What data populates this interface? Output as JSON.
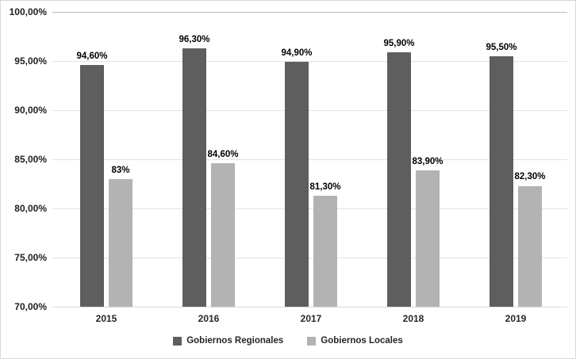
{
  "chart_data": {
    "type": "bar",
    "categories": [
      "2015",
      "2016",
      "2017",
      "2018",
      "2019"
    ],
    "series": [
      {
        "name": "Gobiernos Regionales",
        "color": "#5e5e5e",
        "values": [
          94.6,
          96.3,
          94.9,
          95.9,
          95.5
        ],
        "labels": [
          "94,60%",
          "96,30%",
          "94,90%",
          "95,90%",
          "95,50%"
        ]
      },
      {
        "name": "Gobiernos Locales",
        "color": "#b3b3b3",
        "values": [
          83.0,
          84.6,
          81.3,
          83.9,
          82.3
        ],
        "labels": [
          "83%",
          "84,60%",
          "81,30%",
          "83,90%",
          "82,30%"
        ]
      }
    ],
    "title": "",
    "xlabel": "",
    "ylabel": "",
    "ylim": [
      70,
      100
    ],
    "ytick_step": 5,
    "ytick_labels": [
      "100,00%",
      "95,00%",
      "90,00%",
      "85,00%",
      "80,00%",
      "75,00%",
      "70,00%"
    ],
    "grid": true,
    "legend_position": "bottom",
    "colors": {
      "gridline": "#e2e2e2",
      "gridline_top": "#bfbfbf",
      "axis_text": "#1f1f1f",
      "data_label_text": "#000000",
      "background": "#ffffff",
      "border": "#d9d9d9"
    }
  }
}
